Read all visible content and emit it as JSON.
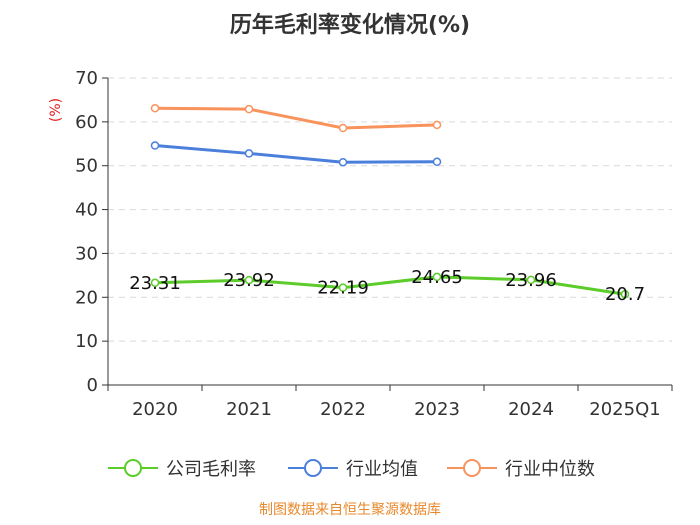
{
  "chart_data": {
    "type": "line",
    "title": "历年毛利率变化情况(%)",
    "y_unit_label": "(%)",
    "categories": [
      "2020",
      "2021",
      "2022",
      "2023",
      "2024",
      "2025Q1"
    ],
    "y_ticks": [
      "0",
      "10",
      "20",
      "30",
      "40",
      "50",
      "60",
      "70"
    ],
    "ylim": [
      0,
      70
    ],
    "y_step": 10,
    "grid": true,
    "legend_position": "bottom",
    "series": [
      {
        "name": "公司毛利率",
        "color": "#5ccc2a",
        "values": [
          23.31,
          23.92,
          22.19,
          24.65,
          23.96,
          20.7
        ],
        "labels": [
          "23.31",
          "23.92",
          "22.19",
          "24.65",
          "23.96",
          "20.7"
        ],
        "show_labels": true
      },
      {
        "name": "行业均值",
        "color": "#4a7fdc",
        "values": [
          54.6,
          52.8,
          50.8,
          50.9,
          null,
          null
        ],
        "show_labels": false
      },
      {
        "name": "行业中位数",
        "color": "#f8935c",
        "values": [
          63.1,
          62.9,
          58.6,
          59.3,
          null,
          null
        ],
        "show_labels": false
      }
    ],
    "source": "制图数据来自恒生聚源数据库",
    "colors": {
      "axis": "#333333",
      "grid": "#d9d9d9",
      "unit_label": "#e02020",
      "source_text": "#e8892b"
    }
  }
}
